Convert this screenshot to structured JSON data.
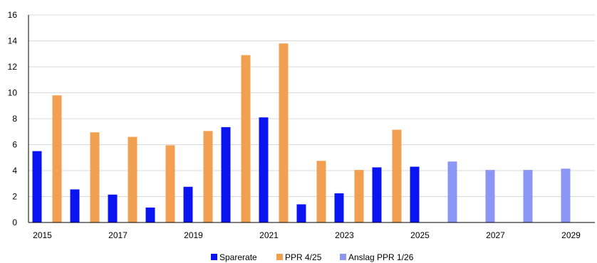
{
  "chart_data": {
    "type": "bar",
    "title": "",
    "xlabel": "",
    "ylabel": "",
    "ylim": [
      0,
      16
    ],
    "yticks": [
      0,
      2,
      4,
      6,
      8,
      10,
      12,
      14,
      16
    ],
    "grid": true,
    "legend_position": "bottom",
    "categories": [
      "2015",
      "2016",
      "2017",
      "2018",
      "2019",
      "2020",
      "2021",
      "2022",
      "2023",
      "2024",
      "2025",
      "2026",
      "2027",
      "2028",
      "2029"
    ],
    "x_tick_labels": [
      "2015",
      "2017",
      "2019",
      "2021",
      "2023",
      "2025",
      "2027",
      "2029"
    ],
    "series": [
      {
        "name": "Sparerate",
        "color": "#0a14f0",
        "values": [
          5.5,
          2.55,
          2.15,
          1.15,
          2.75,
          7.35,
          8.1,
          1.4,
          2.25,
          4.25,
          4.3,
          null,
          null,
          null,
          null
        ]
      },
      {
        "name": "PPR 4/25",
        "color": "#f0a050",
        "values": [
          9.8,
          6.95,
          6.6,
          5.95,
          7.05,
          12.9,
          13.8,
          4.75,
          4.05,
          7.15,
          null,
          null,
          null,
          null,
          null
        ]
      },
      {
        "name": "Anslag PPR 1/26",
        "color": "#8c96f5",
        "values": [
          null,
          null,
          null,
          null,
          null,
          null,
          null,
          null,
          null,
          null,
          null,
          4.7,
          4.05,
          4.05,
          4.15
        ]
      }
    ]
  }
}
